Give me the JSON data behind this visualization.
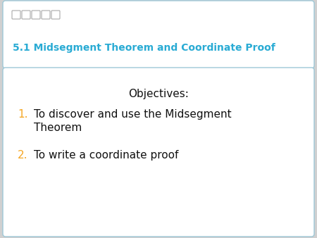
{
  "title": "5.1 Midsegment Theorem and Coordinate Proof",
  "title_color": "#29ABD4",
  "objectives_title": "Objectives:",
  "objectives_title_color": "#111111",
  "items": [
    "To discover and use the Midsegment\nTheorem",
    "To write a coordinate proof"
  ],
  "item_numbers": [
    "1.",
    "2."
  ],
  "item_number_color": "#F5A623",
  "item_text_color": "#111111",
  "fig_bg": "#d0d0d0",
  "top_box_bg": "#ffffff",
  "bottom_box_bg": "#ffffff",
  "box_border_color": "#9ec8d8",
  "small_squares_color": "#aaaaaa"
}
